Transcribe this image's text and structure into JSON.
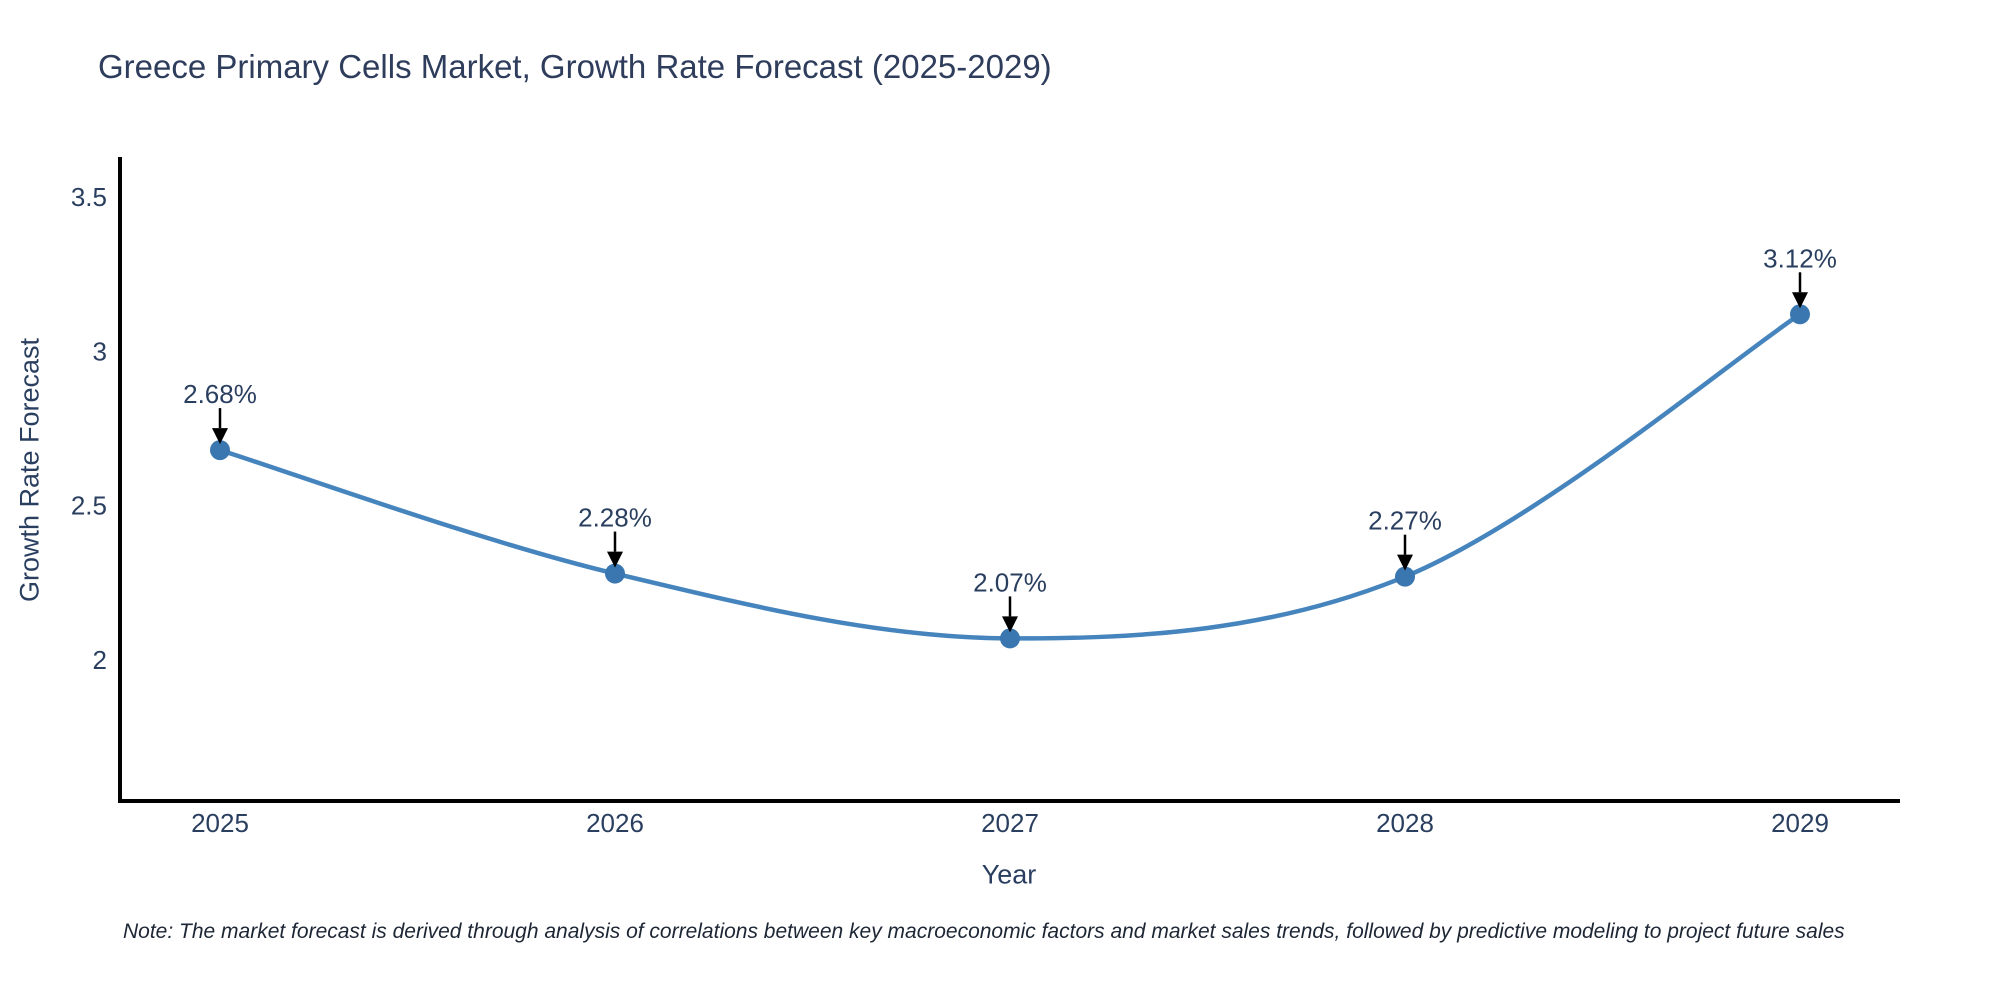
{
  "title": "Greece Primary Cells Market, Growth Rate Forecast (2025-2029)",
  "note": "Note: The market forecast is derived through analysis of correlations between key macroeconomic factors and market sales trends, followed by predictive modeling to project future sales",
  "chart_data": {
    "type": "line",
    "title": "Greece Primary Cells Market, Growth Rate Forecast (2025-2029)",
    "xlabel": "Year",
    "ylabel": "Growth Rate Forecast",
    "categories": [
      "2025",
      "2026",
      "2027",
      "2028",
      "2029"
    ],
    "values": [
      2.68,
      2.28,
      2.07,
      2.27,
      3.12
    ],
    "point_labels": [
      "2.68%",
      "2.28%",
      "2.07%",
      "2.27%",
      "3.12%"
    ],
    "yticks": [
      2,
      2.5,
      3,
      3.5
    ],
    "ylim": [
      1.54,
      3.62
    ],
    "grid": false,
    "legend": false,
    "line_shape": "spline",
    "colors": {
      "line": "#4584bd",
      "marker": "#3a77b1",
      "axis": "#000000",
      "annotation_arrow": "#000000",
      "tick_text": "#2a3f5f",
      "title_text": "#2f3d5c"
    }
  }
}
